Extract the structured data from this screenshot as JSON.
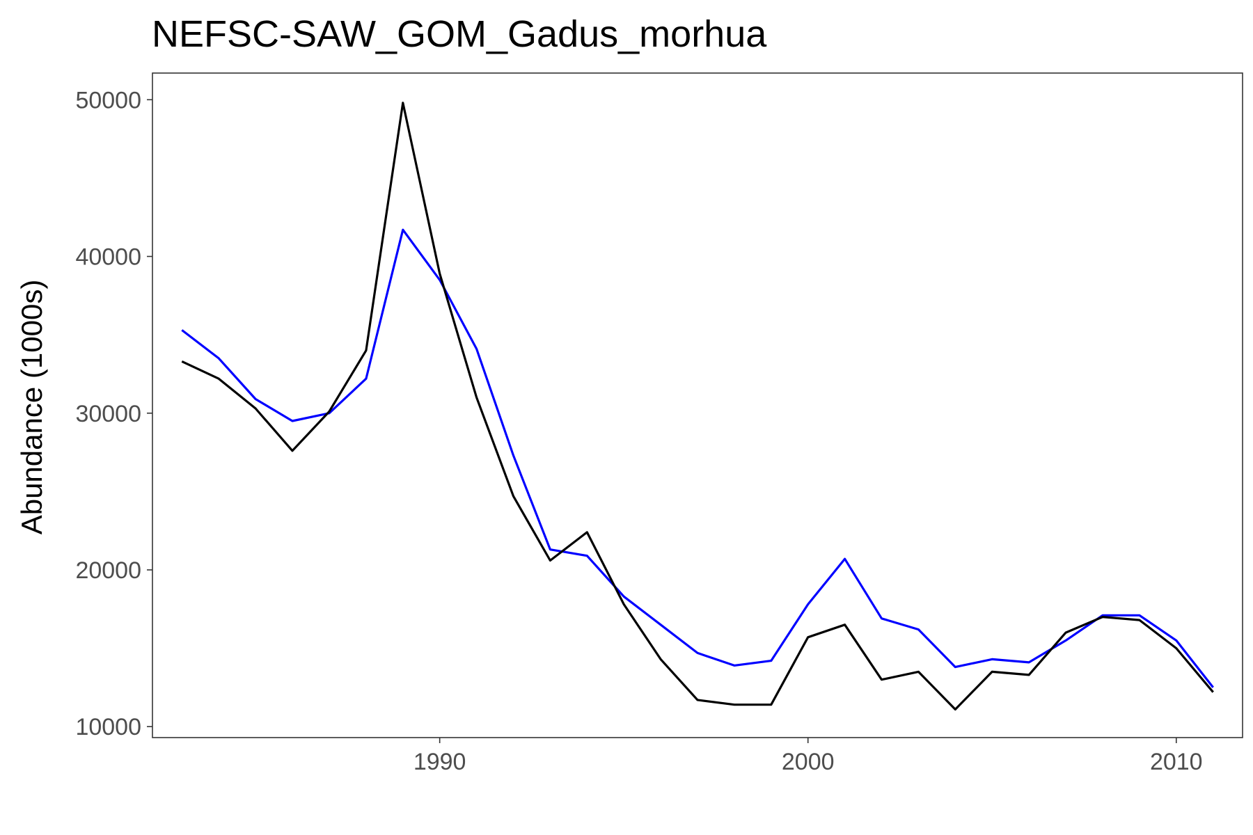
{
  "chart_data": {
    "type": "line",
    "title": "NEFSC-SAW_GOM_Gadus_morhua",
    "xlabel": "",
    "ylabel": "Abundance (1000s)",
    "xlim": [
      1982.2,
      2011.8
    ],
    "ylim": [
      9300,
      51700
    ],
    "x_ticks": [
      1990,
      2000,
      2010
    ],
    "y_ticks": [
      10000,
      20000,
      30000,
      40000,
      50000
    ],
    "grid": false,
    "legend": "none",
    "x": [
      1983,
      1984,
      1985,
      1986,
      1987,
      1988,
      1989,
      1990,
      1991,
      1992,
      1993,
      1994,
      1995,
      1996,
      1997,
      1998,
      1999,
      2000,
      2001,
      2002,
      2003,
      2004,
      2005,
      2006,
      2007,
      2008,
      2009,
      2010,
      2011
    ],
    "series": [
      {
        "color": "#0000ff",
        "values": [
          35300,
          33500,
          30900,
          29500,
          30000,
          32200,
          41700,
          38500,
          34100,
          27300,
          21300,
          20900,
          18300,
          16500,
          14700,
          13900,
          14200,
          17800,
          20700,
          16900,
          16200,
          13800,
          14300,
          14100,
          15500,
          17100,
          17100,
          15500,
          12500
        ]
      },
      {
        "color": "#000000",
        "values": [
          33300,
          32200,
          30300,
          27600,
          30100,
          34000,
          49800,
          38900,
          31000,
          24700,
          20600,
          22400,
          17800,
          14300,
          11700,
          11400,
          11400,
          15700,
          16500,
          13000,
          13500,
          11100,
          13500,
          13300,
          16000,
          17000,
          16800,
          15000,
          12200
        ]
      }
    ]
  }
}
